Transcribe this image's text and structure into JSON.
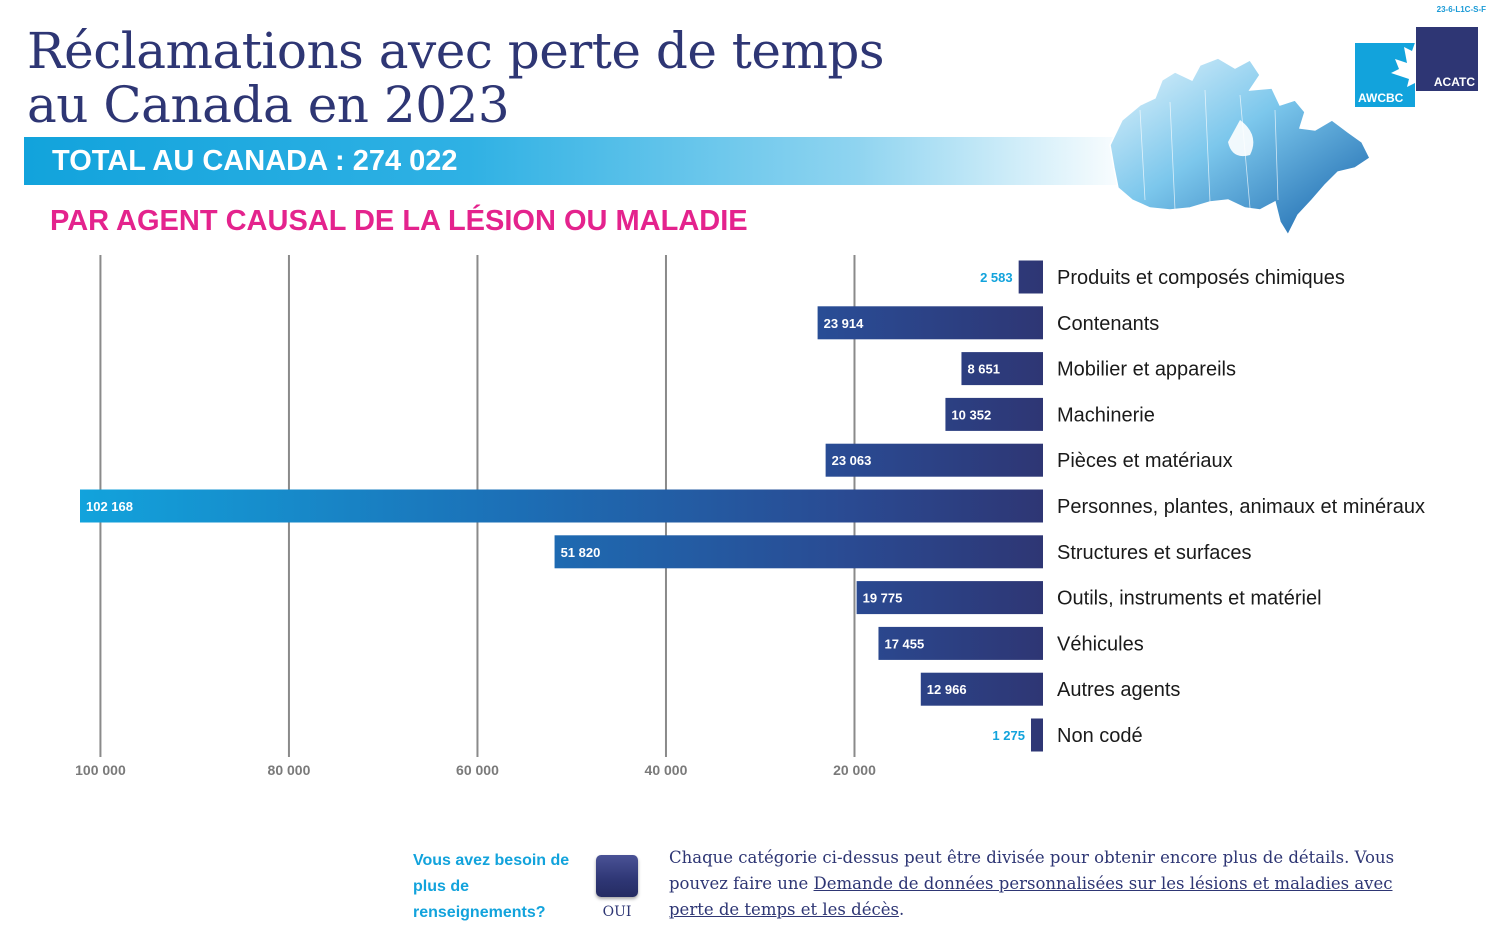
{
  "doc_code": "23-6-L1C-S-F",
  "title_line1": "Réclamations avec perte de temps",
  "title_line2": "au Canada en 2023",
  "total_label": "TOTAL AU CANADA : 274 022",
  "subtitle": "PAR AGENT CAUSAL DE LA LÉSION OU MALADIE",
  "logo": {
    "left_text": "AWCBC",
    "right_text": "ACATC"
  },
  "colors": {
    "navy": "#2e3674",
    "cyan": "#12a3dc",
    "magenta": "#e4238d",
    "grid": "#8a8a8a",
    "tick": "#7a7a7a"
  },
  "chart_data": {
    "type": "bar",
    "orientation": "horizontal",
    "direction": "right-to-left",
    "title": "PAR AGENT CAUSAL DE LA LÉSION OU MALADIE",
    "xlim": [
      0,
      100000
    ],
    "xticks": [
      100000,
      80000,
      60000,
      40000,
      20000
    ],
    "xtick_labels": [
      "100 000",
      "80 000",
      "60 000",
      "40 000",
      "20 000"
    ],
    "categories": [
      "Produits et composés chimiques",
      "Contenants",
      "Mobilier et appareils",
      "Machinerie",
      "Pièces et matériaux",
      "Personnes, plantes, animaux et minéraux",
      "Structures et surfaces",
      "Outils, instruments et matériel",
      "Véhicules",
      "Autres agents",
      "Non codé"
    ],
    "values": [
      2583,
      23914,
      8651,
      10352,
      23063,
      102168,
      51820,
      19775,
      17455,
      12966,
      1275
    ],
    "value_labels": [
      "2 583",
      "23 914",
      "8 651",
      "10 352",
      "23 063",
      "102 168",
      "51 820",
      "19 775",
      "17 455",
      "12 966",
      "1 275"
    ]
  },
  "footer": {
    "question": "Vous avez besoin de plus de renseignements?",
    "button_label": "OUI",
    "info_text": "Chaque catégorie ci-dessus peut être divisée pour obtenir encore plus de détails. Vous pouvez faire une ",
    "link_text": "Demande de données personnalisées sur les lésions et maladies avec perte de temps et les décès",
    "info_end": "."
  }
}
